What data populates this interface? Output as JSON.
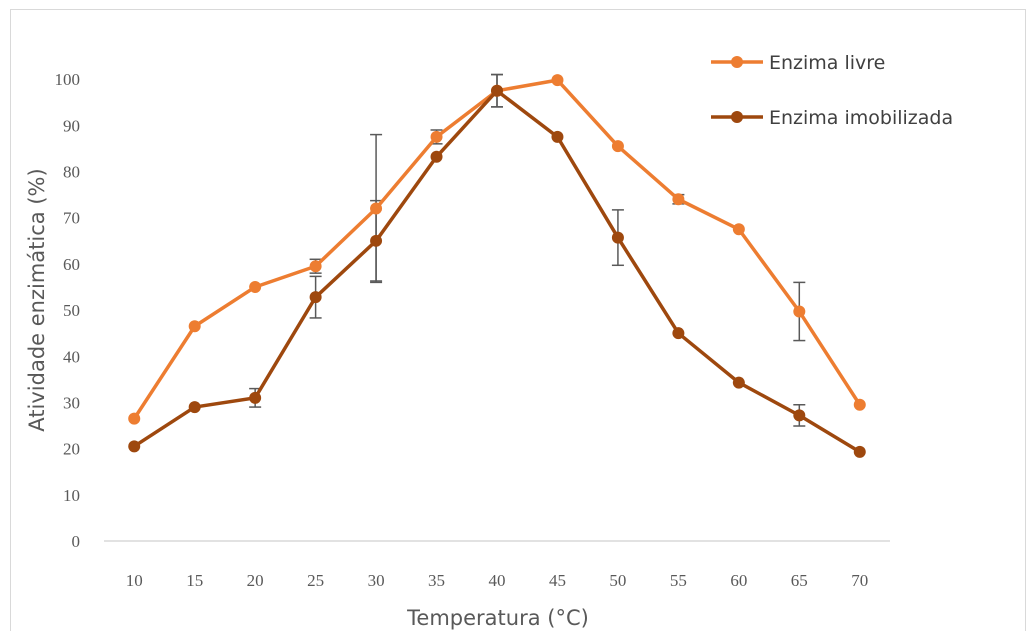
{
  "chart_data": {
    "type": "line",
    "title": "",
    "xlabel": "Temperatura (°C)",
    "ylabel": "Atividade enzimática (%)",
    "categories": [
      "10",
      "15",
      "20",
      "25",
      "30",
      "35",
      "40",
      "45",
      "50",
      "55",
      "60",
      "65",
      "70"
    ],
    "yticks": [
      "0",
      "10",
      "20",
      "30",
      "40",
      "50",
      "60",
      "70",
      "80",
      "90",
      "100"
    ],
    "ylim": [
      0,
      110
    ],
    "grid": false,
    "legend_position": "top-right",
    "series": [
      {
        "name": "Enzima livre",
        "color": "#ED7D31",
        "values": [
          26.5,
          46.5,
          55,
          59.5,
          72,
          87.5,
          97.5,
          99.8,
          85.5,
          74,
          67.5,
          49.7,
          29.5
        ],
        "error": [
          0,
          0,
          0,
          1.5,
          16,
          1.5,
          3.5,
          0,
          0,
          1,
          0,
          6.3,
          0
        ]
      },
      {
        "name": "Enzima imobilizada",
        "color": "#9E480E",
        "values": [
          20.5,
          29,
          31,
          52.8,
          65,
          83.2,
          97.5,
          87.5,
          65.7,
          45,
          34.3,
          27.2,
          19.3
        ],
        "error": [
          0,
          0,
          2,
          4.5,
          8.7,
          0,
          3.5,
          0,
          6,
          0,
          0,
          2.3,
          0
        ]
      }
    ]
  }
}
